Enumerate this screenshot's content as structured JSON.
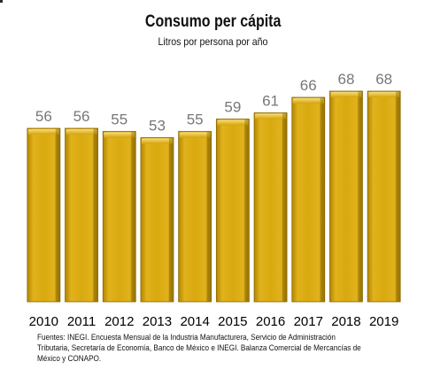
{
  "title": "Consumo per cápita",
  "subtitle": "Litros por persona por año",
  "source": "Fuentes: INEGI. Encuesta Mensual de la Industria Manufacturera, Servicio de Administración Tributaria, Secretaría de Economía, Banco de México e INEGI. Balanza Comercial de Mercancías de México y CONAPO.",
  "colors": {
    "bar": "#d8a810",
    "bar_dark": "#8c6a00",
    "bar_light": "#f3d46a",
    "label": "#777777",
    "axis_label": "#000000"
  },
  "chart_data": {
    "type": "bar",
    "categories": [
      "2010",
      "2011",
      "2012",
      "2013",
      "2014",
      "2015",
      "2016",
      "2017",
      "2018",
      "2019"
    ],
    "values": [
      56,
      56,
      55,
      53,
      55,
      59,
      61,
      66,
      68,
      68
    ],
    "title": "Consumo per cápita",
    "subtitle": "Litros por persona por año",
    "ylim": [
      0,
      68
    ],
    "grid": false,
    "legend": "none",
    "data_labels": true
  }
}
